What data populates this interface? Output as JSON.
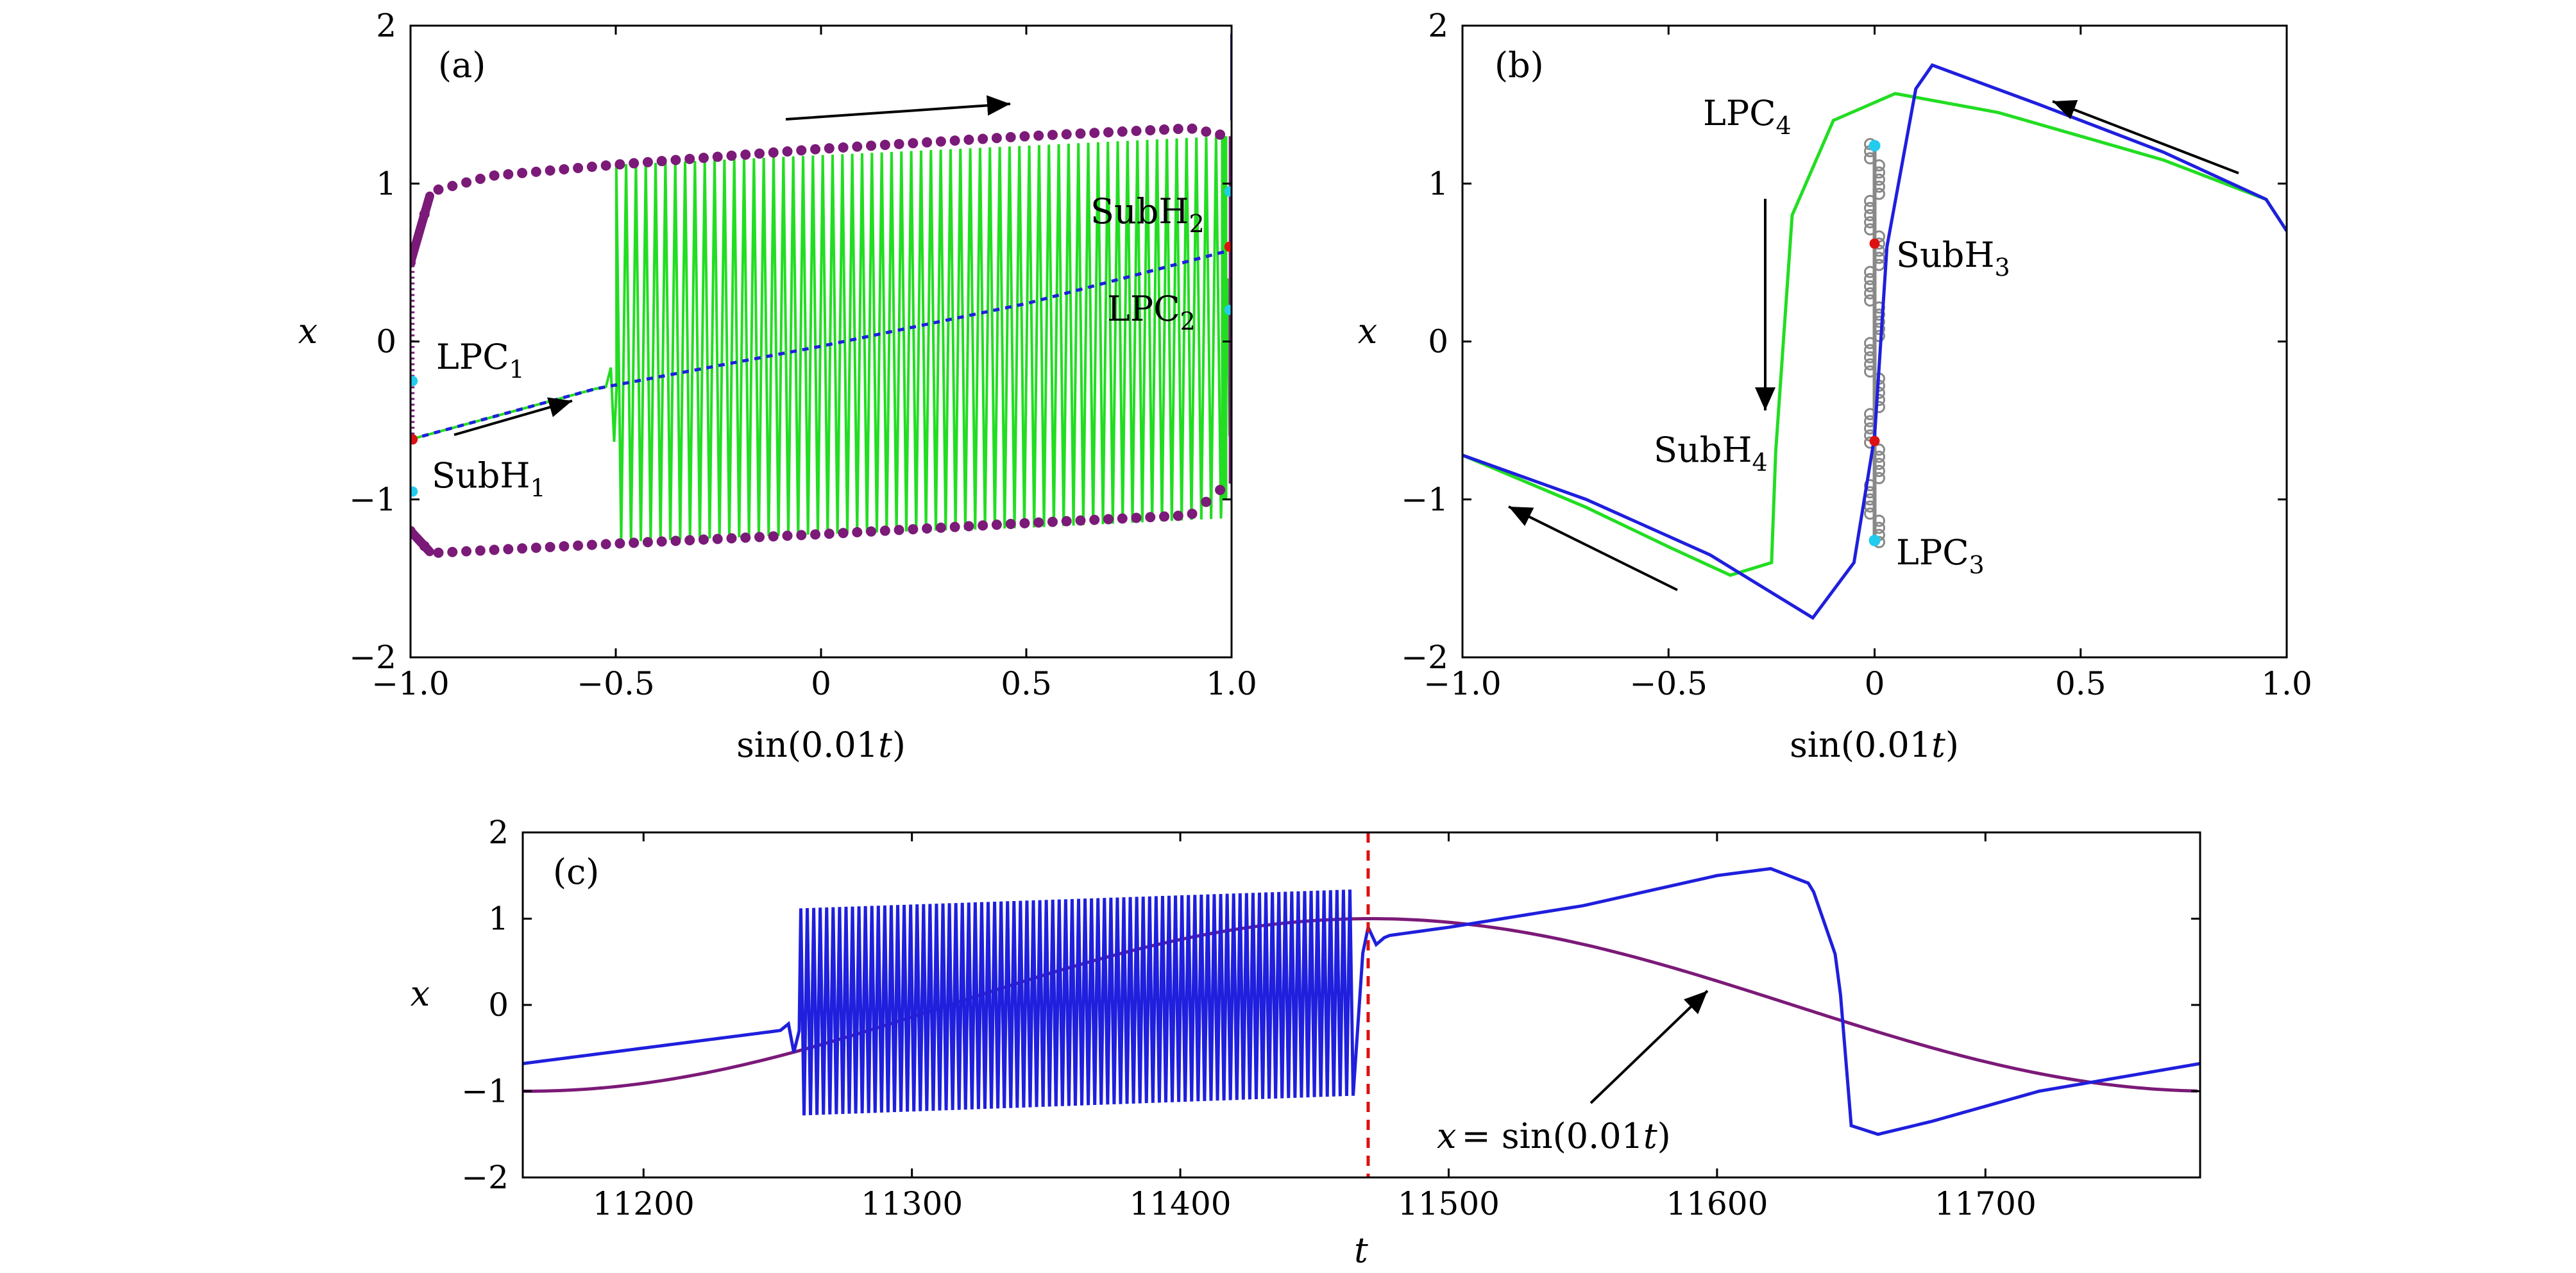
{
  "chart_data": [
    {
      "panel": "(a)",
      "type": "line",
      "title": "",
      "xlabel": "sin(0.01t)",
      "ylabel": "x",
      "xlim": [
        -1.0,
        1.0
      ],
      "ylim": [
        -2,
        2
      ],
      "xticks": [
        "−1.0",
        "−0.5",
        "0",
        "0.5",
        "1.0"
      ],
      "yticks": [
        "2",
        "1",
        "0",
        "−1",
        "−2"
      ],
      "colors": {
        "oscillation": "#22dd22",
        "limit_cycle": "#7b1a78",
        "unstable_equilibrium": "#1f1fdd",
        "hopf": "#dd1111",
        "lpc": "#22ccee"
      },
      "series": [
        {
          "name": "trajectory",
          "style": "green fast oscillation, onset near sin=-0.52",
          "onset_x": -0.52,
          "upper_envelope": [
            [
              -0.5,
              1.12
            ],
            [
              0.0,
              1.18
            ],
            [
              0.5,
              1.24
            ],
            [
              0.98,
              1.3
            ]
          ],
          "lower_envelope": [
            [
              -0.5,
              -1.27
            ],
            [
              0.0,
              -1.22
            ],
            [
              0.5,
              -1.18
            ],
            [
              0.98,
              -1.12
            ]
          ]
        },
        {
          "name": "limit cycle max",
          "style": "purple dots",
          "points": [
            [
              -1.0,
              0.5
            ],
            [
              -0.95,
              0.95
            ],
            [
              -0.8,
              1.05
            ],
            [
              -0.5,
              1.12
            ],
            [
              0.0,
              1.22
            ],
            [
              0.5,
              1.3
            ],
            [
              0.9,
              1.35
            ],
            [
              0.99,
              1.3
            ]
          ]
        },
        {
          "name": "limit cycle min",
          "style": "purple dots",
          "points": [
            [
              -1.0,
              -1.2
            ],
            [
              -0.95,
              -1.34
            ],
            [
              -0.8,
              -1.32
            ],
            [
              -0.5,
              -1.28
            ],
            [
              0.0,
              -1.22
            ],
            [
              0.5,
              -1.15
            ],
            [
              0.9,
              -1.1
            ],
            [
              0.99,
              -0.9
            ]
          ]
        },
        {
          "name": "equilibrium",
          "style": "blue dashed",
          "points": [
            [
              -1.0,
              -0.62
            ],
            [
              -0.55,
              -0.3
            ],
            [
              0.0,
              -0.03
            ],
            [
              0.5,
              0.24
            ],
            [
              1.0,
              0.58
            ]
          ]
        }
      ],
      "annotations": [
        {
          "label": "LPC",
          "sub": "1",
          "x": -0.93,
          "y": -0.1
        },
        {
          "label": "SubH",
          "sub": "1",
          "x": -0.94,
          "y": -0.9
        },
        {
          "label": "SubH",
          "sub": "2",
          "x": 0.67,
          "y": 0.8
        },
        {
          "label": "LPC",
          "sub": "2",
          "x": 0.72,
          "y": 0.12
        }
      ]
    },
    {
      "panel": "(b)",
      "type": "line",
      "title": "",
      "xlabel": "sin(0.01t)",
      "ylabel": "x",
      "xlim": [
        -1.0,
        1.0
      ],
      "ylim": [
        -2,
        2
      ],
      "xticks": [
        "−1.0",
        "−0.5",
        "0",
        "0.5",
        "1.0"
      ],
      "yticks": [
        "2",
        "1",
        "0",
        "−1",
        "−2"
      ],
      "colors": {
        "increasing": "#22dd22",
        "decreasing": "#1f1fdd",
        "unstable_cycle": "#888888",
        "hopf": "#dd1111",
        "lpc": "#22ccee"
      },
      "series": [
        {
          "name": "green branch",
          "points": [
            [
              -1.0,
              -0.72
            ],
            [
              -0.7,
              -1.05
            ],
            [
              -0.5,
              -1.3
            ],
            [
              -0.35,
              -1.48
            ],
            [
              -0.25,
              -1.4
            ],
            [
              -0.24,
              -0.7
            ],
            [
              -0.2,
              0.8
            ],
            [
              -0.1,
              1.4
            ],
            [
              0.05,
              1.57
            ],
            [
              0.3,
              1.45
            ],
            [
              0.7,
              1.15
            ],
            [
              0.95,
              0.9
            ],
            [
              1.0,
              0.7
            ]
          ]
        },
        {
          "name": "blue branch",
          "points": [
            [
              -1.0,
              -0.72
            ],
            [
              -0.7,
              -1.0
            ],
            [
              -0.4,
              -1.35
            ],
            [
              -0.15,
              -1.75
            ],
            [
              -0.05,
              -1.4
            ],
            [
              0.0,
              -0.6
            ],
            [
              0.03,
              0.6
            ],
            [
              0.1,
              1.6
            ],
            [
              0.14,
              1.75
            ],
            [
              0.4,
              1.5
            ],
            [
              0.7,
              1.2
            ],
            [
              0.95,
              0.9
            ],
            [
              1.0,
              0.7
            ]
          ]
        },
        {
          "name": "unstable cycle",
          "style": "grey circles at sin=0",
          "x": 0.0,
          "yrange": [
            -1.27,
            1.27
          ]
        }
      ],
      "annotations": [
        {
          "label": "LPC",
          "sub": "4",
          "x": -0.53,
          "y": 1.4
        },
        {
          "label": "SubH",
          "sub": "3",
          "x": 0.06,
          "y": 0.5
        },
        {
          "label": "SubH",
          "sub": "4",
          "x": -0.55,
          "y": -0.75
        },
        {
          "label": "LPC",
          "sub": "3",
          "x": 0.06,
          "y": -1.38
        }
      ]
    },
    {
      "panel": "(c)",
      "type": "line",
      "title": "",
      "xlabel": "t",
      "ylabel": "x",
      "xlim": [
        11155,
        11780
      ],
      "ylim": [
        -2,
        2
      ],
      "xticks": [
        "11200",
        "11300",
        "11400",
        "11500",
        "11600",
        "11700"
      ],
      "yticks": [
        "2",
        "1",
        "0",
        "−1",
        "−2"
      ],
      "colors": {
        "x": "#1f1fdd",
        "forcing": "#7b1a78",
        "marker": "#dd1111"
      },
      "series": [
        {
          "name": "x(t)",
          "style": "blue, oscillation 11258-11465",
          "points": [
            [
              11155,
              -0.68
            ],
            [
              11200,
              -0.5
            ],
            [
              11250,
              -0.3
            ],
            [
              11465,
              0.75
            ],
            [
              11500,
              0.9
            ],
            [
              11550,
              1.15
            ],
            [
              11600,
              1.5
            ],
            [
              11620,
              1.58
            ],
            [
              11635,
              1.4
            ],
            [
              11645,
              0.5
            ],
            [
              11650,
              -1.4
            ],
            [
              11660,
              -1.5
            ],
            [
              11680,
              -1.35
            ],
            [
              11720,
              -1.0
            ],
            [
              11780,
              -0.68
            ]
          ]
        },
        {
          "name": "x = sin(0.01t)",
          "style": "purple",
          "points": [
            [
              11155,
              -1.0
            ],
            [
              11250,
              -0.5
            ],
            [
              11314,
              0.0
            ],
            [
              11400,
              0.78
            ],
            [
              11471,
              1.0
            ],
            [
              11550,
              0.7
            ],
            [
              11628,
              0.0
            ],
            [
              11700,
              -0.7
            ],
            [
              11785,
              -1.0
            ]
          ]
        }
      ],
      "vline": {
        "t": 11470,
        "style": "red dashed"
      },
      "annotations": [
        {
          "label": "x = sin(0.01t)",
          "x": 11580,
          "y": -1.6
        }
      ]
    }
  ],
  "panel_tags": {
    "a": "(a)",
    "b": "(b)",
    "c": "(c)"
  },
  "annotation_texts": {
    "a_lpc1": "LPC",
    "a_lpc1_sub": "1",
    "a_subh1": "SubH",
    "a_subh1_sub": "1",
    "a_subh2": "SubH",
    "a_subh2_sub": "2",
    "a_lpc2": "LPC",
    "a_lpc2_sub": "2",
    "b_lpc4": "LPC",
    "b_lpc4_sub": "4",
    "b_subh3": "SubH",
    "b_subh3_sub": "3",
    "b_subh4": "SubH",
    "b_subh4_sub": "4",
    "b_lpc3": "LPC",
    "b_lpc3_sub": "3",
    "c_x": "x",
    "c_eq": "= sin(0.01",
    "c_t": "t",
    "c_close": ")"
  }
}
